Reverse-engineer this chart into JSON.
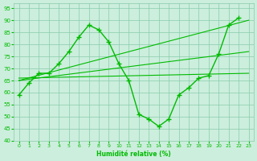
{
  "xlabel": "Humidité relative (%)",
  "background_color": "#cceedd",
  "grid_color": "#88ccaa",
  "line_color": "#00bb00",
  "xlim": [
    -0.5,
    23.5
  ],
  "ylim": [
    40,
    97
  ],
  "xticks": [
    0,
    1,
    2,
    3,
    4,
    5,
    6,
    7,
    8,
    9,
    10,
    11,
    12,
    13,
    14,
    15,
    16,
    17,
    18,
    19,
    20,
    21,
    22,
    23
  ],
  "yticks": [
    40,
    45,
    50,
    55,
    60,
    65,
    70,
    75,
    80,
    85,
    90,
    95
  ],
  "line1_x": [
    0,
    1,
    2,
    3,
    4,
    5,
    6,
    7,
    8,
    9,
    10,
    11,
    12,
    13,
    14,
    15,
    16,
    17,
    18,
    19,
    20,
    21,
    22
  ],
  "line1_y": [
    59,
    64,
    68,
    68,
    72,
    77,
    83,
    88,
    86,
    81,
    72,
    65,
    51,
    49,
    46,
    49,
    59,
    62,
    66,
    67,
    76,
    88,
    91
  ],
  "line2_x": [
    0,
    23
  ],
  "line2_y": [
    65,
    77
  ],
  "line3_x": [
    0,
    23
  ],
  "line3_y": [
    65,
    90
  ],
  "line4_x": [
    0,
    23
  ],
  "line4_y": [
    66,
    68
  ]
}
